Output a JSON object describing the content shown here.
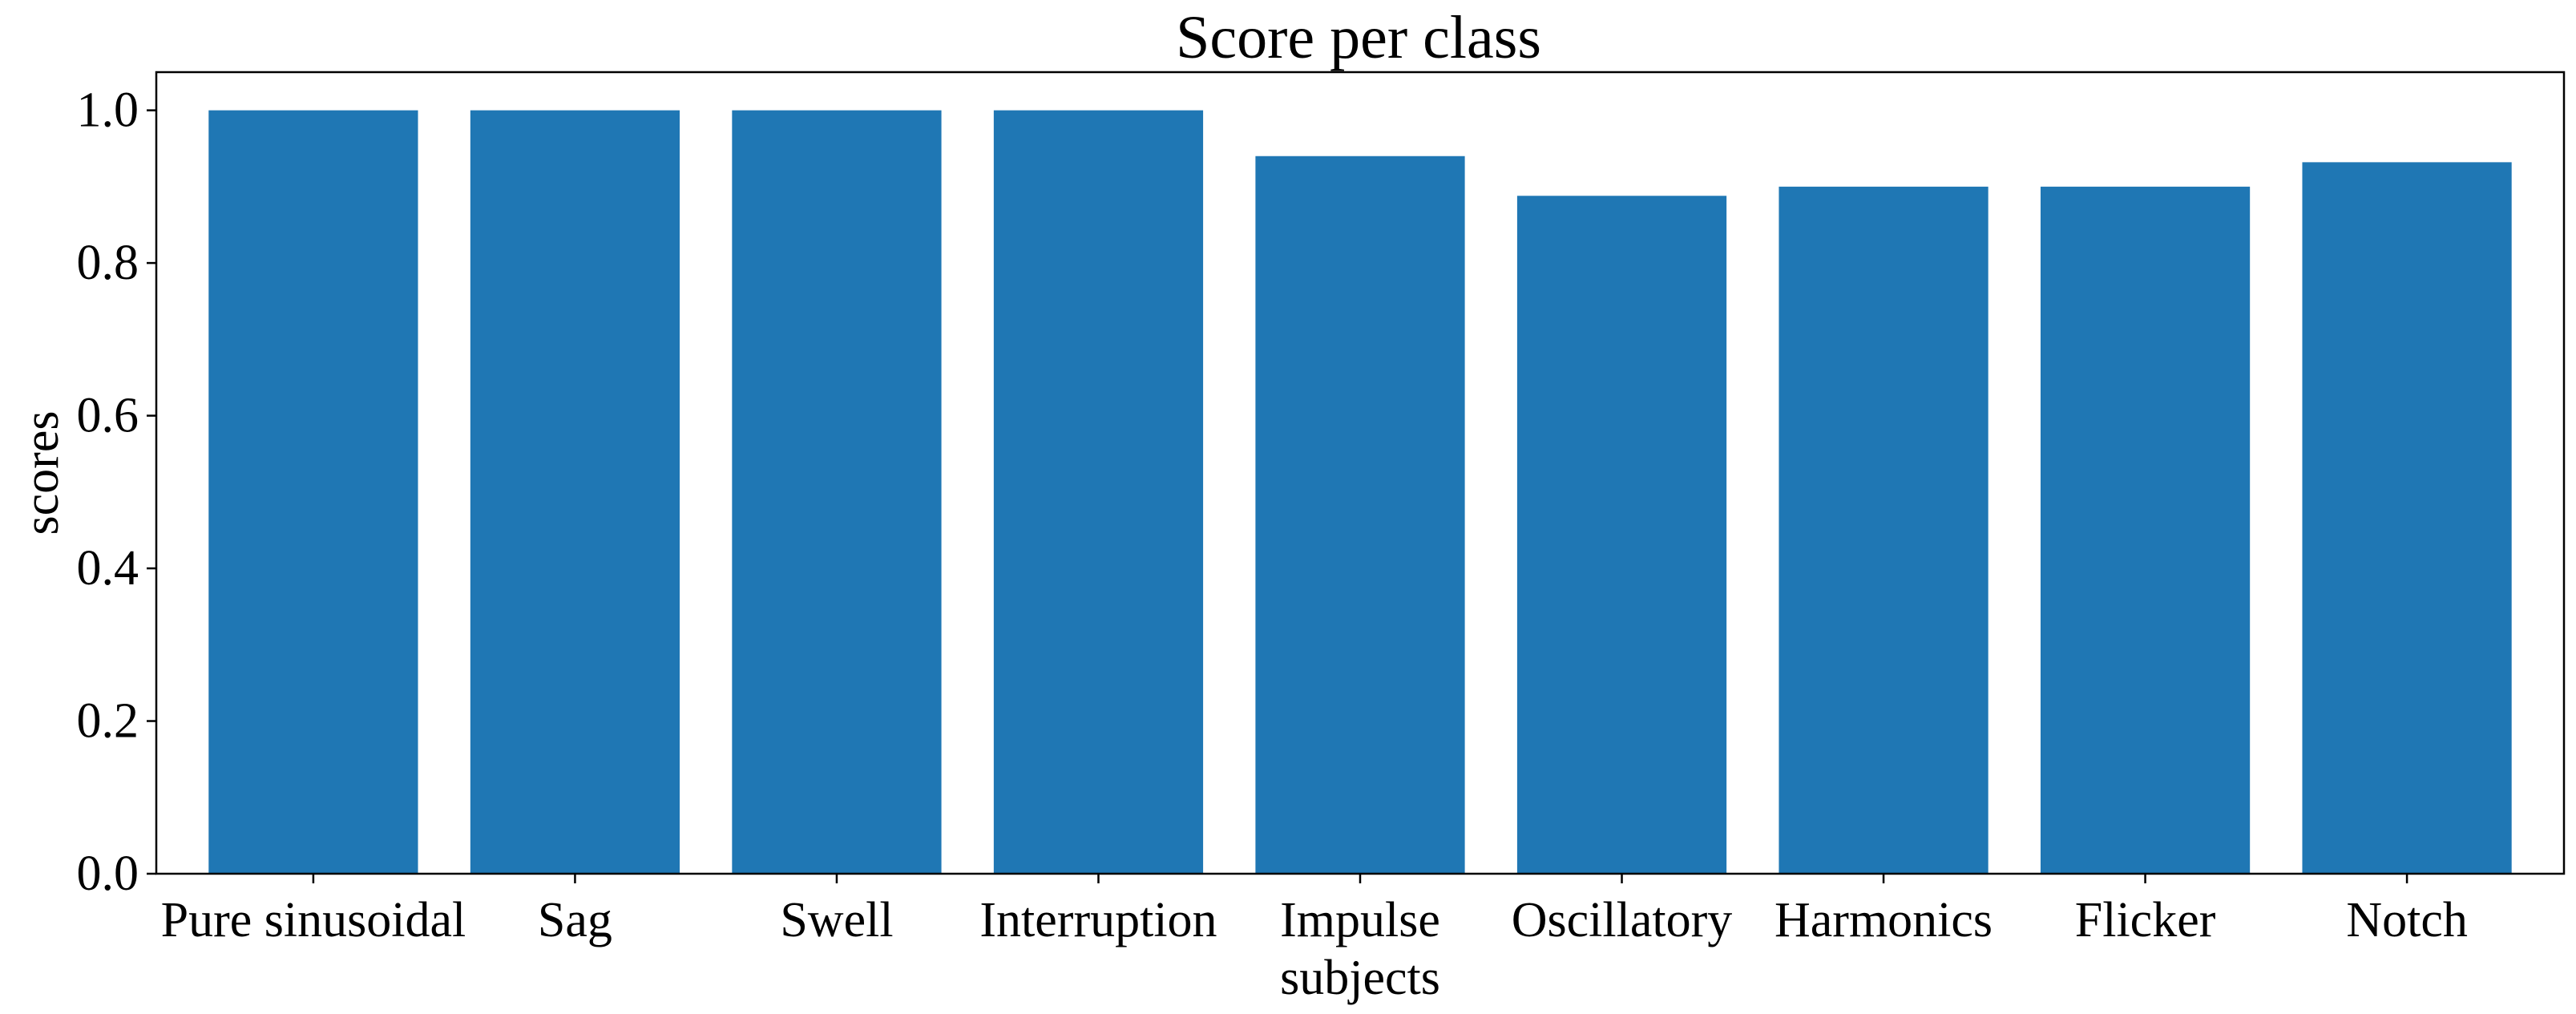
{
  "chart_data": {
    "type": "bar",
    "title": "Score per class",
    "xlabel": "",
    "ylabel": "scores",
    "categories": [
      "Pure sinusoidal",
      "Sag",
      "Swell",
      "Interruption",
      "Impulse\nsubjects",
      "Oscillatory",
      "Harmonics",
      "Flicker",
      "Notch"
    ],
    "values": [
      1.0,
      1.0,
      1.0,
      1.0,
      0.94,
      0.888,
      0.9,
      0.9,
      0.932
    ],
    "ylim": [
      0,
      1.05
    ],
    "yticks": [
      "0.0",
      "0.2",
      "0.4",
      "0.6",
      "0.8",
      "1.0"
    ],
    "bar_color": "#1f77b4",
    "grid": false
  }
}
